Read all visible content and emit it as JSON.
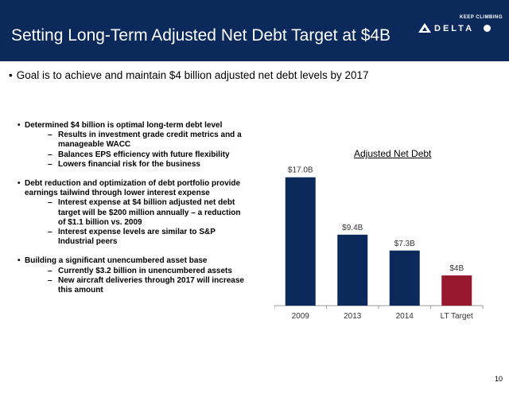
{
  "header": {
    "title": "Setting Long-Term Adjusted Net Debt Target at $4B",
    "logo_tagline": "KEEP CLIMBING",
    "logo_word": "DELTA"
  },
  "goal": "Goal is to achieve and maintain $4 billion adjusted net debt levels by 2017",
  "bullets": [
    {
      "text": "Determined $4 billion is optimal long-term debt level",
      "subs": [
        "Results in investment grade credit metrics and a manageable WACC",
        "Balances EPS efficiency with future flexibility",
        "Lowers financial risk for the business"
      ]
    },
    {
      "text": "Debt reduction and optimization of debt portfolio provide earnings tailwind through lower interest expense",
      "subs": [
        "Interest expense at $4 billion adjusted net debt target will be $200 million annually – a reduction of $1.1 billion vs. 2009",
        "Interest expense levels are similar to S&P Industrial peers"
      ]
    },
    {
      "text": "Building a significant unencumbered asset base",
      "subs": [
        "Currently $3.2 billion in unencumbered assets",
        "New aircraft deliveries through 2017 will increase this amount"
      ]
    }
  ],
  "chart_data": {
    "type": "bar",
    "title": "Adjusted Net Debt",
    "categories": [
      "2009",
      "2013",
      "2014",
      "LT Target"
    ],
    "values": [
      17.0,
      9.4,
      7.3,
      4.0
    ],
    "labels": [
      "$17.0B",
      "$9.4B",
      "$7.3B",
      "$4B"
    ],
    "colors": [
      "#0b2a5b",
      "#0b2a5b",
      "#0b2a5b",
      "#98192f"
    ],
    "ylim": [
      0,
      17.5
    ],
    "grid": false,
    "legend": "none"
  },
  "page_number": "10"
}
